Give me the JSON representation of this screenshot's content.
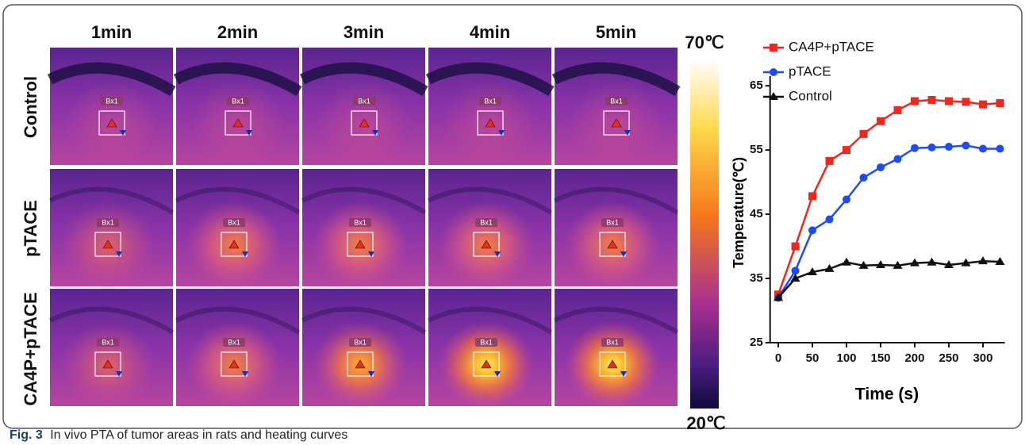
{
  "panel": {
    "columns": [
      "1min",
      "2min",
      "3min",
      "4min",
      "5min"
    ],
    "rows": [
      "Control",
      "pTACE",
      "CA4P+pTACE"
    ],
    "roi_label": "Bx1"
  },
  "colorbar": {
    "max_label": "70℃",
    "min_label": "20℃"
  },
  "chart_data": {
    "type": "line",
    "x_label": "Time (s)",
    "y_label": "Temperature(℃)",
    "x": [
      0,
      25,
      50,
      75,
      100,
      125,
      150,
      175,
      200,
      225,
      250,
      275,
      300,
      325
    ],
    "series": [
      {
        "name": "CA4P+pTACE",
        "color": "#f0271c",
        "marker": "square",
        "values": [
          32.5,
          40,
          47.8,
          53.3,
          55,
          57.5,
          59.5,
          61.2,
          62.6,
          62.8,
          62.6,
          62.5,
          62.1,
          62.3
        ]
      },
      {
        "name": "pTACE",
        "color": "#1f4cf0",
        "marker": "circle",
        "values": [
          32,
          36.2,
          42.5,
          44.2,
          47.3,
          50.7,
          52.3,
          53.6,
          55.3,
          55.4,
          55.5,
          55.7,
          55.2,
          55.2
        ]
      },
      {
        "name": "Control",
        "color": "#111111",
        "marker": "triangle",
        "values": [
          32,
          35,
          36,
          36.5,
          37.5,
          37,
          37.1,
          37,
          37.4,
          37.5,
          37.1,
          37.4,
          37.7,
          37.6
        ]
      }
    ],
    "xlim": [
      -12,
      332
    ],
    "ylim": [
      25,
      66.5
    ],
    "xticks": [
      0,
      50,
      100,
      150,
      200,
      250,
      300
    ],
    "yticks": [
      25,
      35,
      45,
      55,
      65
    ],
    "legend": "upper-left"
  },
  "caption": {
    "label": "Fig. 3",
    "text": "In vivo PTA of tumor areas in rats and heating curves"
  }
}
